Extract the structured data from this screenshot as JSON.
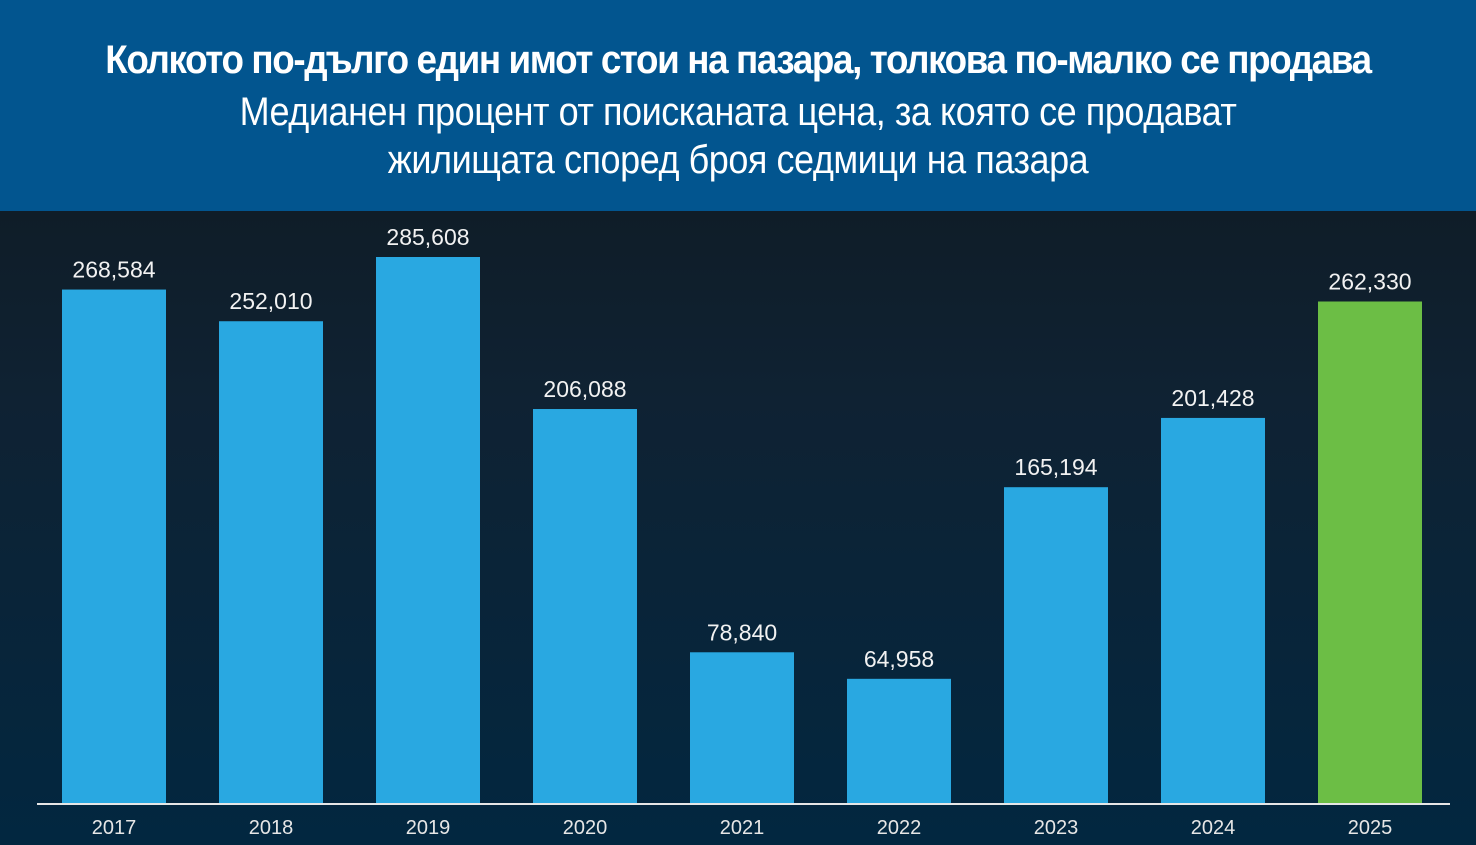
{
  "header": {
    "title": "Колкото по-дълго един имот стои на пазара, толкова по-малко се продава",
    "subtitle": "Медианен процент от поисканата цена, за която се продават жилищата според броя седмици на пазара"
  },
  "colors": {
    "header_bg": "#02558f",
    "bar": "#29a8e1",
    "bar_highlight": "#6cbe45",
    "axis": "#e6e6e6"
  },
  "chart_data": {
    "type": "bar",
    "title": "Колкото по-дълго един имот стои на пазара, толкова по-малко се продава",
    "subtitle": "Медианен процент от поисканата цена, за която се продават жилищата според броя седмици на пазара",
    "categories": [
      "2017",
      "2018",
      "2019",
      "2020",
      "2021",
      "2022",
      "2023",
      "2024",
      "2025"
    ],
    "values": [
      268584,
      252010,
      285608,
      206088,
      78840,
      64958,
      165194,
      201428,
      262330
    ],
    "value_labels": [
      "268,584",
      "252,010",
      "285,608",
      "206,088",
      "78,840",
      "64,958",
      "165,194",
      "201,428",
      "262,330"
    ],
    "highlight_category": "2025",
    "xlabel": "",
    "ylabel": "",
    "ylim": [
      0,
      315000
    ],
    "grid": false,
    "legend": "none"
  }
}
